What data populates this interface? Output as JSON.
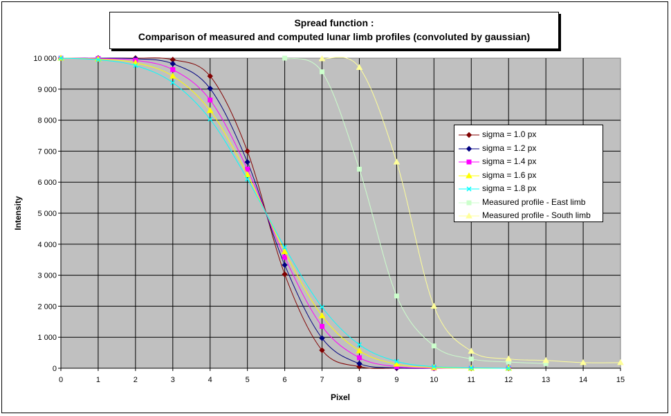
{
  "chart_data": {
    "type": "line",
    "title": "Spread function :",
    "subtitle": "Comparison of measured and computed lunar limb profiles (convoluted by gaussian)",
    "xlabel": "Pixel",
    "ylabel": "Intensity",
    "xlim": [
      0,
      15
    ],
    "ylim": [
      0,
      10000
    ],
    "xticks": [
      "0",
      "1",
      "2",
      "3",
      "4",
      "5",
      "6",
      "7",
      "8",
      "9",
      "10",
      "11",
      "12",
      "13",
      "14",
      "15"
    ],
    "yticks": [
      "0",
      "1 000",
      "2 000",
      "3 000",
      "4 000",
      "5 000",
      "6 000",
      "7 000",
      "8 000",
      "9 000",
      "10 000"
    ],
    "grid": true,
    "legend_position": "right",
    "series": [
      {
        "name": "sigma = 1.0 px",
        "color": "#800000",
        "marker": "diamond",
        "x": [
          0,
          1,
          2,
          3,
          4,
          5,
          6,
          7,
          8,
          9,
          10,
          11,
          12
        ],
        "y": [
          10000,
          10000,
          10000,
          9950,
          9420,
          7000,
          3030,
          580,
          50,
          0,
          0,
          0,
          0
        ]
      },
      {
        "name": "sigma = 1.2 px",
        "color": "#000080",
        "marker": "diamond",
        "x": [
          0,
          1,
          2,
          3,
          4,
          5,
          6,
          7,
          8,
          9,
          10,
          11,
          12
        ],
        "y": [
          10000,
          10000,
          9980,
          9820,
          9020,
          6650,
          3330,
          970,
          150,
          10,
          0,
          0,
          0
        ]
      },
      {
        "name": "sigma = 1.4 px",
        "color": "#ff00ff",
        "marker": "square",
        "x": [
          0,
          1,
          2,
          3,
          4,
          5,
          6,
          7,
          8,
          9,
          10,
          11,
          12
        ],
        "y": [
          10000,
          9990,
          9930,
          9630,
          8650,
          6420,
          3580,
          1350,
          340,
          50,
          5,
          0,
          0
        ]
      },
      {
        "name": "sigma = 1.6 px",
        "color": "#ffff00",
        "marker": "triangle",
        "x": [
          0,
          1,
          2,
          3,
          4,
          5,
          6,
          7,
          8,
          9,
          10,
          11,
          12
        ],
        "y": [
          10000,
          9970,
          9850,
          9420,
          8310,
          6240,
          3760,
          1690,
          560,
          130,
          20,
          0,
          0
        ]
      },
      {
        "name": "sigma = 1.8 px",
        "color": "#00ffff",
        "marker": "x",
        "x": [
          0,
          1,
          2,
          3,
          4,
          5,
          6,
          7,
          8,
          9,
          10,
          11,
          12
        ],
        "y": [
          10000,
          9950,
          9760,
          9210,
          8030,
          6100,
          3900,
          1970,
          760,
          220,
          50,
          10,
          0
        ]
      },
      {
        "name": "Measured profile - East limb",
        "color": "#ccffcc",
        "marker": "square",
        "x": [
          6,
          7,
          8,
          9,
          10,
          11,
          12,
          13
        ],
        "y": [
          10000,
          9560,
          6420,
          2330,
          720,
          300,
          200,
          150
        ]
      },
      {
        "name": "Measured profile - South limb",
        "color": "#ffff99",
        "marker": "triangle",
        "x": [
          7,
          8,
          9,
          10,
          11,
          12,
          13,
          14,
          15
        ],
        "y": [
          9980,
          9700,
          6650,
          2000,
          550,
          300,
          250,
          180,
          180
        ]
      }
    ]
  }
}
